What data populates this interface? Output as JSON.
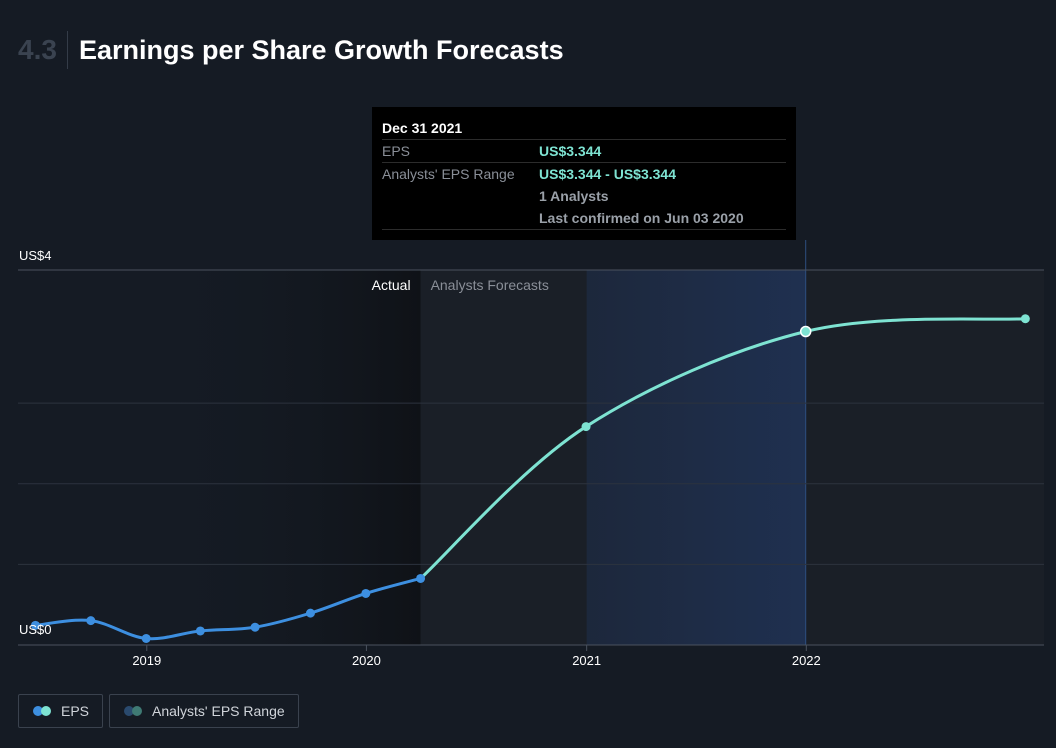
{
  "header": {
    "section_number": "4.3",
    "title": "Earnings per Share Growth Forecasts"
  },
  "colors": {
    "background": "#151b24",
    "actual_line": "#3d8fe0",
    "forecast_line": "#7ee3d2",
    "range_highlight": "#1f3050",
    "actual_shade": "#0f1217",
    "forecast_shade": "#1a1f27"
  },
  "tooltip": {
    "date": "Dec 31 2021",
    "eps_label": "EPS",
    "eps_value": "US$3.344",
    "range_label": "Analysts' EPS Range",
    "range_value": "US$3.344 - US$3.344",
    "analysts": "1 Analysts",
    "confirmed": "Last confirmed on Jun 03 2020"
  },
  "regions": {
    "actual_label": "Actual",
    "forecast_label": "Analysts Forecasts"
  },
  "legend": {
    "eps_label": "EPS",
    "range_label": "Analysts' EPS Range"
  },
  "chart_data": {
    "type": "line",
    "title": "Earnings per Share Growth Forecasts",
    "xlabel": "",
    "ylabel": "",
    "x_ticks": [
      "2019",
      "2020",
      "2021",
      "2022"
    ],
    "y_ticks": [
      "US$0",
      "US$4"
    ],
    "ylim": [
      0,
      4
    ],
    "xlim": [
      "2018-06-01",
      "2023-01-31"
    ],
    "grid": true,
    "legend_position": "bottom-left",
    "actual_end": "2020-03-31",
    "highlight_range": [
      "2021-01-01",
      "2021-12-31"
    ],
    "series": [
      {
        "name": "EPS",
        "kind": "actual",
        "points": [
          {
            "x": "2018-06-30",
            "y": 0.21
          },
          {
            "x": "2018-09-30",
            "y": 0.26
          },
          {
            "x": "2018-12-31",
            "y": 0.07
          },
          {
            "x": "2019-03-31",
            "y": 0.15
          },
          {
            "x": "2019-06-30",
            "y": 0.19
          },
          {
            "x": "2019-09-30",
            "y": 0.34
          },
          {
            "x": "2019-12-31",
            "y": 0.55
          },
          {
            "x": "2020-03-31",
            "y": 0.71
          }
        ]
      },
      {
        "name": "EPS",
        "kind": "forecast",
        "points": [
          {
            "x": "2020-03-31",
            "y": 0.71
          },
          {
            "x": "2020-12-31",
            "y": 2.33
          },
          {
            "x": "2021-12-31",
            "y": 3.344
          },
          {
            "x": "2022-12-31",
            "y": 3.48
          }
        ]
      }
    ]
  }
}
